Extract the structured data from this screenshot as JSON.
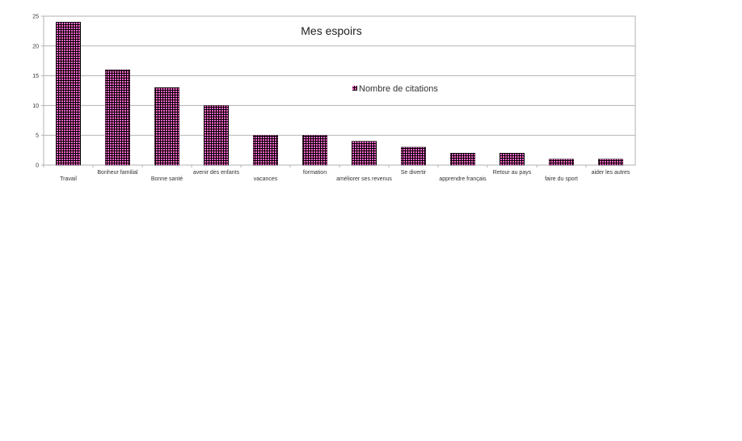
{
  "chart_data": {
    "type": "bar",
    "title": "Mes espoirs",
    "categories": [
      "Travail",
      "Bonheur familial",
      "Bonne santé",
      "avenir des enfants",
      "vacances",
      "formation",
      "améliorer ses revenus",
      "Se divertir",
      "apprendre français",
      "Retour au pays",
      "faire du sport",
      "aider les autres"
    ],
    "series": [
      {
        "name": "Nombre de citations",
        "values": [
          24,
          16,
          13,
          10,
          5,
          5,
          4,
          3,
          2,
          2,
          1,
          1
        ]
      }
    ],
    "ylim": [
      0,
      25
    ],
    "yticks": [
      0,
      5,
      10,
      15,
      20,
      25
    ],
    "grid": true,
    "legend_position": "inside-center-right",
    "bar_color": "#ff66cc",
    "bar_pattern_color": "#000000"
  }
}
